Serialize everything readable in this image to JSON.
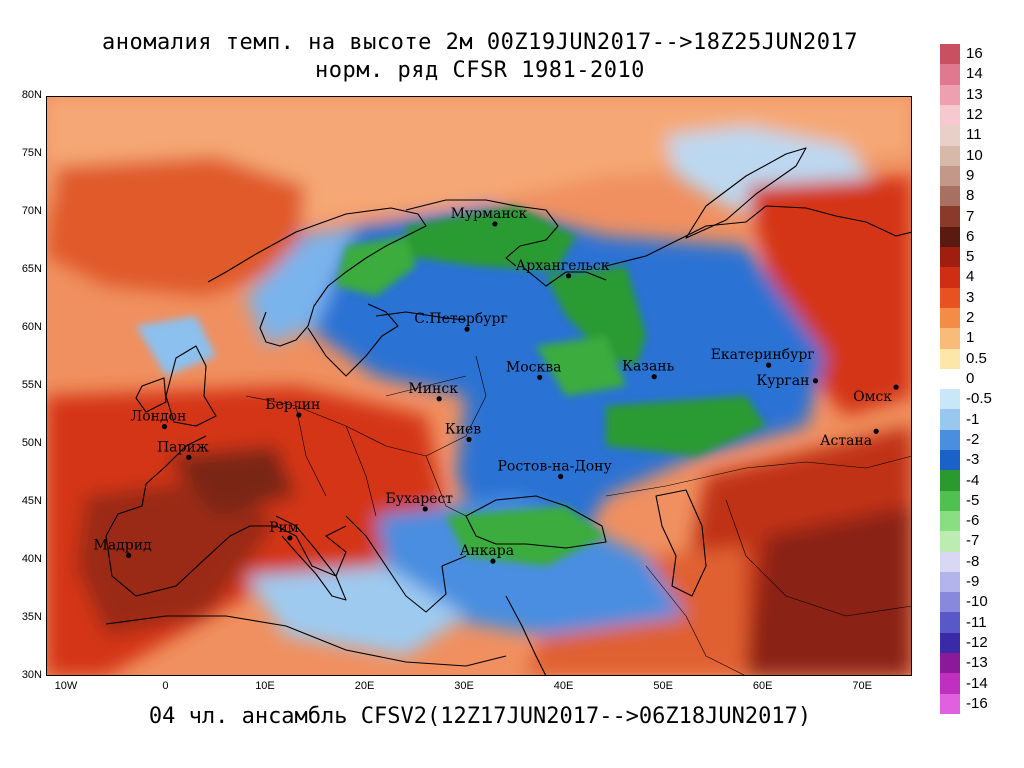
{
  "title_line1": "аномалия темп. на высоте 2м 00Z19JUN2017-->18Z25JUN2017",
  "title_line2": "норм. ряд CFSR 1981-2010",
  "footer": "04 чл. ансамбль CFSV2(12Z17JUN2017-->06Z18JUN2017)",
  "map": {
    "projection": "lat-lon",
    "lon_range": [
      -12,
      75
    ],
    "lat_range": [
      30,
      80
    ],
    "lat_ticks": [
      "80N",
      "75N",
      "70N",
      "65N",
      "60N",
      "55N",
      "50N",
      "45N",
      "40N",
      "35N",
      "30N"
    ],
    "lon_ticks": [
      "10W",
      "0",
      "10E",
      "20E",
      "30E",
      "40E",
      "50E",
      "60E",
      "70E"
    ],
    "cities": [
      {
        "name": "Мурманск",
        "lon": 33.1,
        "lat": 68.97
      },
      {
        "name": "Архангельск",
        "lon": 40.5,
        "lat": 64.5
      },
      {
        "name": "С.Петербург",
        "lon": 30.3,
        "lat": 59.9
      },
      {
        "name": "Москва",
        "lon": 37.6,
        "lat": 55.75
      },
      {
        "name": "Казань",
        "lon": 49.1,
        "lat": 55.8
      },
      {
        "name": "Екатеринбург",
        "lon": 60.6,
        "lat": 56.8
      },
      {
        "name": "Курган",
        "lon": 65.3,
        "lat": 55.45
      },
      {
        "name": "Омск",
        "lon": 73.4,
        "lat": 54.9
      },
      {
        "name": "Астана",
        "lon": 71.4,
        "lat": 51.1
      },
      {
        "name": "Минск",
        "lon": 27.5,
        "lat": 53.9
      },
      {
        "name": "Киев",
        "lon": 30.5,
        "lat": 50.4
      },
      {
        "name": "Лондон",
        "lon": -0.1,
        "lat": 51.5
      },
      {
        "name": "Париж",
        "lon": 2.35,
        "lat": 48.85
      },
      {
        "name": "Берлин",
        "lon": 13.4,
        "lat": 52.5
      },
      {
        "name": "Ростов-на-Дону",
        "lon": 39.7,
        "lat": 47.2
      },
      {
        "name": "Бухарест",
        "lon": 26.1,
        "lat": 44.4
      },
      {
        "name": "Рим",
        "lon": 12.5,
        "lat": 41.9
      },
      {
        "name": "Мадрид",
        "lon": -3.7,
        "lat": 40.4
      },
      {
        "name": "Анкара",
        "lon": 32.9,
        "lat": 39.9
      }
    ]
  },
  "legend": {
    "labels": [
      "16",
      "14",
      "13",
      "12",
      "11",
      "10",
      "9",
      "8",
      "7",
      "6",
      "5",
      "4",
      "3",
      "2",
      "1",
      "0.5",
      "0",
      "-0.5",
      "-1",
      "-2",
      "-3",
      "-4",
      "-5",
      "-6",
      "-7",
      "-8",
      "-9",
      "-10",
      "-11",
      "-12",
      "-13",
      "-14",
      "-16"
    ],
    "colors": [
      "#c85060",
      "#e07890",
      "#eea0b0",
      "#f8c8d0",
      "#e8d0c8",
      "#d8b8a8",
      "#c49888",
      "#a87060",
      "#8a3a28",
      "#5a1a10",
      "#a01e10",
      "#d02e14",
      "#e85220",
      "#f48c48",
      "#f8bc78",
      "#fce6a8",
      "#ffffff",
      "#c8e8f8",
      "#98c8f0",
      "#4a8ee0",
      "#1a62c8",
      "#2a9a30",
      "#50c050",
      "#88de80",
      "#bcecb0",
      "#d8d8f4",
      "#b4b4ec",
      "#8888dc",
      "#5858c8",
      "#3a2aa8",
      "#8a1a9a",
      "#c030c0",
      "#e060e0"
    ]
  },
  "field_colors": {
    "very_warm": "#5a1a10",
    "warm": "#d02e14",
    "mild": "#f8bc78",
    "cool": "#4a8ee0",
    "cold": "#1a62c8",
    "very_cold": "#2a9a30"
  }
}
